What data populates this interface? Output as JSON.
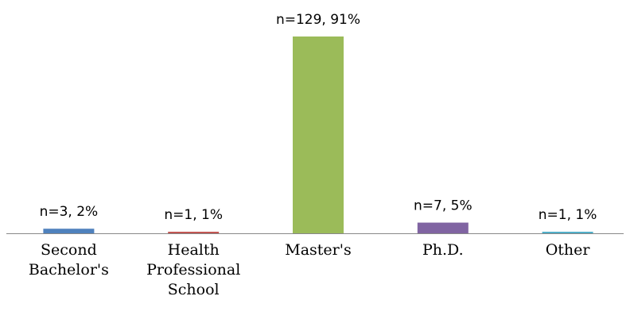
{
  "chart_data": {
    "type": "bar",
    "categories": [
      "Second Bachelor's",
      "Health Professional School",
      "Master's",
      "Ph.D.",
      "Other"
    ],
    "values": [
      3,
      1,
      129,
      7,
      1
    ],
    "value_labels": [
      "n=3, 2%",
      "n=1, 1%",
      "n=129, 91%",
      "n=7, 5%",
      "n=1, 1%"
    ],
    "colors": [
      "#4f81bd",
      "#c0504d",
      "#9bbb59",
      "#8064a2",
      "#4bacc6"
    ]
  }
}
